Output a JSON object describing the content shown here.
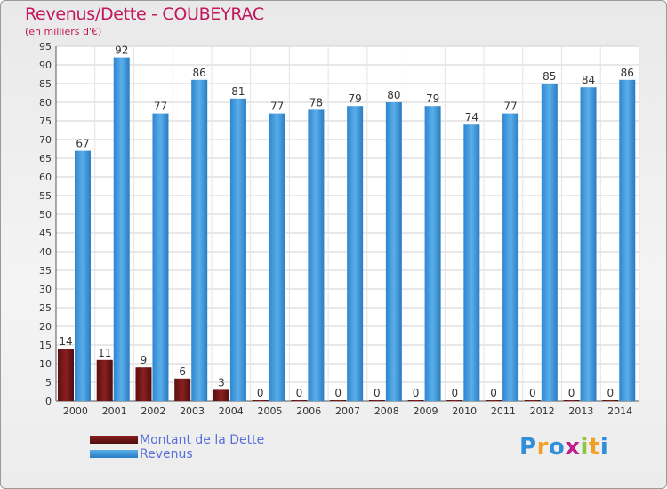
{
  "title": "Revenus/Dette - COUBEYRAC",
  "subtitle": "(en milliers d'€)",
  "colors": {
    "debt": "#6b1414",
    "revenue": "#3f97dc",
    "title": "#c2185b",
    "legend_text": "#5a6ed8"
  },
  "legend": [
    {
      "label": "Montant de la Dette",
      "color": "#6b1414"
    },
    {
      "label": "Revenus",
      "color": "#3f97dc"
    }
  ],
  "logo": {
    "text": "Proxiti"
  },
  "chart_data": {
    "type": "bar",
    "title": "Revenus/Dette - COUBEYRAC",
    "subtitle": "(en milliers d'€)",
    "categories": [
      "2000",
      "2001",
      "2002",
      "2003",
      "2004",
      "2005",
      "2006",
      "2007",
      "2008",
      "2009",
      "2010",
      "2011",
      "2012",
      "2013",
      "2014"
    ],
    "series": [
      {
        "name": "Montant de la Dette",
        "values": [
          14,
          11,
          9,
          6,
          3,
          0,
          0,
          0,
          0,
          0,
          0,
          0,
          0,
          0,
          0
        ]
      },
      {
        "name": "Revenus",
        "values": [
          67,
          92,
          77,
          86,
          81,
          77,
          78,
          79,
          80,
          79,
          74,
          77,
          85,
          84,
          86
        ]
      }
    ],
    "yticks": [
      0,
      5,
      10,
      15,
      20,
      25,
      30,
      35,
      40,
      45,
      50,
      55,
      60,
      65,
      70,
      75,
      80,
      85,
      90,
      95
    ],
    "ylim": [
      0,
      95
    ],
    "grid": true,
    "legend_position": "bottom-left"
  }
}
